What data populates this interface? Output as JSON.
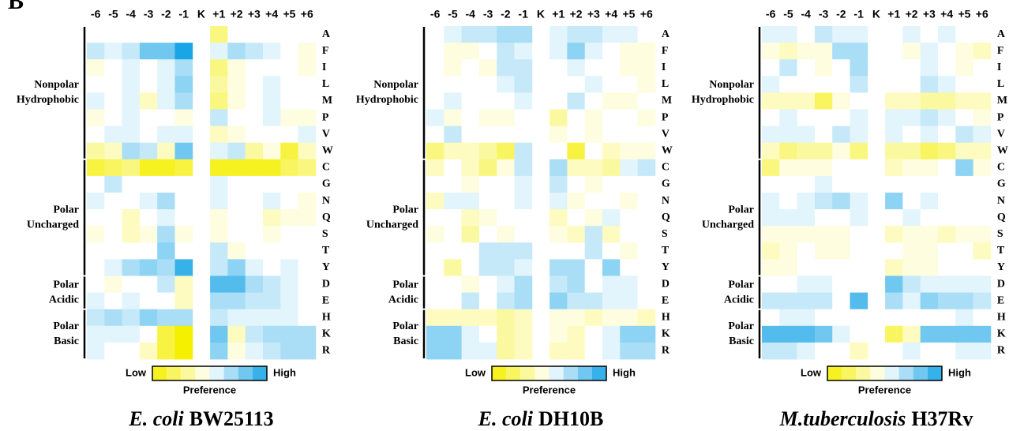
{
  "panel_label": "B",
  "chart_data": [
    {
      "type": "heatmap",
      "species": "E. coli",
      "title": "BW25113",
      "x": [
        "-6",
        "-5",
        "-4",
        "-3",
        "-2",
        "-1",
        "K",
        "+1",
        "+2",
        "+3",
        "+4",
        "+5",
        "+6"
      ],
      "y": [
        "A",
        "F",
        "I",
        "L",
        "M",
        "P",
        "V",
        "W",
        "C",
        "G",
        "N",
        "Q",
        "S",
        "T",
        "Y",
        "D",
        "E",
        "H",
        "K",
        "R"
      ],
      "groups": [
        {
          "label": [
            "Nonpolar",
            "Hydrophobic"
          ],
          "span": 8
        },
        {
          "label": [
            "Polar",
            "Uncharged"
          ],
          "span": 7
        },
        {
          "label": [
            "Polar",
            "Acidic"
          ],
          "span": 2
        },
        {
          "label": [
            "Polar",
            "Basic"
          ],
          "span": 3
        }
      ],
      "zlim": [
        -0.8,
        0.8
      ],
      "low_color": "#f5ef00",
      "high_color": "#1aa6e6",
      "colorbar": {
        "low": "Low",
        "high": "High",
        "label": "Preference"
      },
      "values": [
        [
          0,
          0,
          0,
          0,
          0,
          0,
          null,
          -0.4,
          0,
          0,
          0,
          0,
          0
        ],
        [
          0.2,
          0.1,
          0.2,
          0.5,
          0.5,
          0.8,
          null,
          0.1,
          0.3,
          0.2,
          0.1,
          0,
          -0.1
        ],
        [
          -0.1,
          0,
          0.1,
          0,
          0.1,
          0.3,
          null,
          -0.4,
          -0.1,
          0,
          0,
          0,
          -0.1
        ],
        [
          0,
          0,
          0.1,
          0,
          0.1,
          0.4,
          null,
          -0.3,
          -0.1,
          0,
          0.1,
          0,
          0
        ],
        [
          0.1,
          0,
          0.1,
          -0.2,
          0.1,
          0.3,
          null,
          -0.4,
          -0.1,
          0,
          0.1,
          0,
          0
        ],
        [
          -0.1,
          0,
          0.1,
          0,
          0,
          -0.1,
          null,
          0.2,
          0,
          0,
          0.1,
          -0.1,
          -0.1
        ],
        [
          0,
          0.1,
          0.1,
          0,
          0.1,
          0.1,
          null,
          -0.2,
          -0.1,
          0,
          0,
          0,
          0.1
        ],
        [
          -0.3,
          -0.2,
          0.3,
          0.2,
          -0.2,
          0.5,
          null,
          0.1,
          0.2,
          -0.3,
          -0.1,
          -0.6,
          -0.2
        ],
        [
          -0.6,
          -0.5,
          -0.4,
          -0.7,
          -0.7,
          -0.6,
          null,
          -0.7,
          -0.7,
          -0.7,
          -0.7,
          -0.5,
          -0.4
        ],
        [
          0,
          0.2,
          0,
          0,
          0,
          0,
          null,
          0.1,
          0,
          0,
          0,
          0,
          0
        ],
        [
          0.1,
          0,
          0,
          0.1,
          0.3,
          0,
          null,
          0.1,
          0,
          0,
          0.1,
          0,
          -0.1
        ],
        [
          0,
          0,
          -0.2,
          0,
          0.1,
          0,
          null,
          -0.1,
          0,
          0,
          -0.2,
          -0.1,
          -0.1
        ],
        [
          -0.1,
          0,
          -0.2,
          -0.1,
          0.3,
          -0.1,
          null,
          -0.1,
          0,
          0,
          -0.1,
          0,
          0
        ],
        [
          0,
          0,
          0,
          0,
          0.4,
          0,
          null,
          0.2,
          -0.1,
          0,
          0,
          0,
          0
        ],
        [
          0,
          0.1,
          0.3,
          0.4,
          0.3,
          0.7,
          null,
          0.2,
          0.4,
          0.1,
          0,
          0.1,
          0
        ],
        [
          0,
          -0.1,
          0,
          0,
          0.2,
          -0.2,
          null,
          0.6,
          0.6,
          0.3,
          0.2,
          0.1,
          0
        ],
        [
          0.1,
          0,
          0.1,
          0,
          0,
          -0.2,
          null,
          0.3,
          0.3,
          0.2,
          0.2,
          0.1,
          0
        ],
        [
          0.2,
          0.3,
          0.2,
          0.4,
          0.3,
          0.3,
          null,
          0.2,
          0.1,
          0.1,
          0.1,
          0.1,
          0
        ],
        [
          0.1,
          0.1,
          0.1,
          0,
          -0.6,
          -0.8,
          null,
          0.5,
          -0.2,
          0.2,
          0.3,
          0.3,
          0.3
        ],
        [
          0.1,
          0,
          0,
          -0.2,
          -0.6,
          -0.8,
          null,
          0.4,
          -0.1,
          0.1,
          0.2,
          0.3,
          0.3
        ]
      ]
    },
    {
      "type": "heatmap",
      "species": "E. coli",
      "title": "DH10B",
      "x": [
        "-6",
        "-5",
        "-4",
        "-3",
        "-2",
        "-1",
        "K",
        "+1",
        "+2",
        "+3",
        "+4",
        "+5",
        "+6"
      ],
      "y": [
        "A",
        "F",
        "I",
        "L",
        "M",
        "P",
        "V",
        "W",
        "C",
        "G",
        "N",
        "Q",
        "S",
        "T",
        "Y",
        "D",
        "E",
        "H",
        "K",
        "R"
      ],
      "groups": [
        {
          "label": [
            "Nonpolar",
            "Hydrophobic"
          ],
          "span": 8
        },
        {
          "label": [
            "Polar",
            "Uncharged"
          ],
          "span": 7
        },
        {
          "label": [
            "Polar",
            "Acidic"
          ],
          "span": 2
        },
        {
          "label": [
            "Polar",
            "Basic"
          ],
          "span": 3
        }
      ],
      "zlim": [
        -0.8,
        0.8
      ],
      "low_color": "#f5ef00",
      "high_color": "#1aa6e6",
      "colorbar": {
        "low": "Low",
        "high": "High",
        "label": "Preference"
      },
      "values": [
        [
          0,
          0.1,
          0.2,
          0.2,
          0.3,
          0.3,
          null,
          0.1,
          0.2,
          0.2,
          0.1,
          0.1,
          0
        ],
        [
          0,
          -0.1,
          -0.1,
          0,
          0.2,
          0.1,
          null,
          0.1,
          0.4,
          0.1,
          0,
          -0.1,
          -0.1
        ],
        [
          0,
          -0.1,
          0,
          -0.1,
          0.2,
          0.2,
          null,
          0,
          0.1,
          0,
          0,
          -0.1,
          -0.1
        ],
        [
          0,
          0,
          0,
          0,
          0.1,
          0.2,
          null,
          0,
          0,
          0.1,
          0,
          0,
          -0.1
        ],
        [
          0,
          0.1,
          0,
          0,
          0,
          0.1,
          null,
          0,
          0.2,
          0,
          -0.1,
          -0.1,
          0
        ],
        [
          0.1,
          -0.1,
          0,
          -0.1,
          -0.1,
          0,
          null,
          -0.3,
          0,
          -0.1,
          0,
          0,
          -0.1
        ],
        [
          0,
          0.2,
          0,
          0,
          0,
          0,
          null,
          -0.1,
          0,
          -0.1,
          0,
          0,
          0
        ],
        [
          -0.4,
          -0.2,
          -0.2,
          -0.3,
          -0.5,
          0.2,
          null,
          0,
          -0.6,
          0,
          -0.2,
          -0.1,
          -0.1
        ],
        [
          -0.2,
          0,
          -0.2,
          -0.4,
          -0.1,
          0.2,
          null,
          0.3,
          -0.2,
          -0.2,
          -0.3,
          0.1,
          0.2
        ],
        [
          0,
          0,
          -0.1,
          0,
          0,
          0.1,
          null,
          0.2,
          0,
          -0.1,
          0,
          0,
          0
        ],
        [
          -0.2,
          0.1,
          0.1,
          0,
          0,
          0.1,
          null,
          0.1,
          -0.1,
          0,
          0,
          -0.1,
          0
        ],
        [
          0,
          0,
          -0.2,
          -0.1,
          0,
          0,
          null,
          -0.2,
          0,
          -0.1,
          0.1,
          0,
          0
        ],
        [
          -0.1,
          0,
          -0.3,
          0,
          -0.1,
          0,
          null,
          -0.1,
          -0.2,
          0.2,
          -0.2,
          0,
          0
        ],
        [
          0,
          0,
          0,
          0.2,
          0.2,
          0.2,
          null,
          0,
          0,
          0.2,
          0,
          -0.1,
          0
        ],
        [
          0,
          -0.3,
          0,
          0.2,
          0.2,
          0.1,
          null,
          0.3,
          0.3,
          0,
          0.4,
          0,
          0
        ],
        [
          0,
          0,
          -0.1,
          0,
          0.1,
          0.3,
          null,
          0.2,
          0.3,
          0,
          0.1,
          0.1,
          0
        ],
        [
          0,
          0,
          0.2,
          0,
          0.2,
          0.3,
          null,
          0.4,
          0.2,
          0.2,
          0.1,
          0.1,
          0
        ],
        [
          -0.2,
          -0.2,
          -0.2,
          -0.2,
          -0.3,
          -0.2,
          null,
          -0.1,
          -0.1,
          -0.2,
          -0.1,
          -0.1,
          -0.2
        ],
        [
          0.4,
          0.4,
          0.1,
          0,
          -0.3,
          -0.2,
          null,
          -0.1,
          -0.2,
          0,
          0.1,
          0.4,
          0.4
        ],
        [
          0.4,
          0.4,
          0.1,
          0.1,
          -0.3,
          -0.2,
          null,
          -0.2,
          -0.2,
          0,
          0.1,
          0.3,
          0.3
        ]
      ]
    },
    {
      "type": "heatmap",
      "species": "M.tuberculosis",
      "title": "H37Rv",
      "x": [
        "-6",
        "-5",
        "-4",
        "-3",
        "-2",
        "-1",
        "K",
        "+1",
        "+2",
        "+3",
        "+4",
        "+5",
        "+6"
      ],
      "y": [
        "A",
        "F",
        "I",
        "L",
        "M",
        "P",
        "V",
        "W",
        "C",
        "G",
        "N",
        "Q",
        "S",
        "T",
        "Y",
        "D",
        "E",
        "H",
        "K",
        "R"
      ],
      "groups": [
        {
          "label": [
            "Nonpolar",
            "Hydrophobic"
          ],
          "span": 8
        },
        {
          "label": [
            "Polar",
            "Uncharged"
          ],
          "span": 7
        },
        {
          "label": [
            "Polar",
            "Acidic"
          ],
          "span": 2
        },
        {
          "label": [
            "Polar",
            "Basic"
          ],
          "span": 3
        }
      ],
      "zlim": [
        -0.8,
        0.8
      ],
      "low_color": "#f5ef00",
      "high_color": "#1aa6e6",
      "colorbar": {
        "low": "Low",
        "high": "High",
        "label": "Preference"
      },
      "values": [
        [
          0.1,
          0.1,
          0,
          0.2,
          0.1,
          0.1,
          null,
          0,
          0.1,
          0,
          0.1,
          0,
          0
        ],
        [
          -0.1,
          -0.2,
          -0.1,
          -0.1,
          0.3,
          0.3,
          null,
          0,
          -0.1,
          0.1,
          0,
          -0.1,
          -0.2
        ],
        [
          0,
          0.2,
          0,
          -0.1,
          0,
          0.3,
          null,
          0,
          0,
          0.1,
          0,
          -0.1,
          0
        ],
        [
          0.1,
          0,
          0,
          0,
          0,
          0.2,
          null,
          0,
          0,
          0.2,
          0.1,
          0,
          0
        ],
        [
          -0.2,
          -0.2,
          -0.2,
          -0.5,
          -0.1,
          0,
          null,
          -0.2,
          -0.2,
          -0.3,
          -0.3,
          -0.2,
          -0.2
        ],
        [
          0,
          0.1,
          0,
          0,
          0,
          0.1,
          null,
          0.1,
          0.1,
          0.2,
          0.1,
          0,
          -0.1
        ],
        [
          0.1,
          0.1,
          0.1,
          0,
          0.2,
          0.1,
          null,
          0.1,
          0,
          0.1,
          0,
          0.2,
          0.1
        ],
        [
          -0.2,
          -0.4,
          -0.3,
          -0.3,
          -0.1,
          -0.4,
          null,
          -0.3,
          -0.3,
          -0.5,
          -0.4,
          -0.2,
          -0.2
        ],
        [
          -0.4,
          -0.1,
          -0.1,
          -0.1,
          0,
          0,
          null,
          -0.2,
          -0.1,
          -0.1,
          0,
          0.4,
          -0.1
        ],
        [
          0,
          0,
          0,
          0.1,
          0,
          0,
          null,
          0,
          0,
          0,
          0,
          0,
          0
        ],
        [
          0.1,
          0,
          0.1,
          0.2,
          0.3,
          0.1,
          null,
          0.4,
          0,
          0.1,
          0,
          0,
          0
        ],
        [
          0.1,
          0.1,
          0.1,
          0,
          0,
          0.1,
          null,
          0,
          0.1,
          0,
          0,
          0,
          0
        ],
        [
          -0.1,
          -0.1,
          -0.1,
          -0.1,
          -0.1,
          0,
          null,
          -0.2,
          -0.1,
          -0.1,
          -0.2,
          -0.1,
          -0.1
        ],
        [
          -0.2,
          -0.1,
          0,
          -0.1,
          -0.1,
          0,
          null,
          0,
          -0.1,
          -0.1,
          0,
          0,
          -0.2
        ],
        [
          -0.1,
          -0.1,
          0,
          0,
          0,
          0,
          null,
          -0.2,
          -0.1,
          -0.1,
          0,
          0,
          0
        ],
        [
          0,
          0,
          0.1,
          0.1,
          0,
          0,
          null,
          0.5,
          0.2,
          0.1,
          0.1,
          0.1,
          0.1
        ],
        [
          0.2,
          0.2,
          0.2,
          0.2,
          0,
          0.6,
          null,
          0.3,
          0.1,
          0.4,
          0.3,
          0.3,
          0.2
        ],
        [
          0,
          0.1,
          0.1,
          0,
          0,
          0,
          null,
          0,
          0,
          0,
          0,
          0.1,
          0
        ],
        [
          0.6,
          0.6,
          0.6,
          0.5,
          0.1,
          0,
          null,
          -0.5,
          -0.2,
          0.5,
          0.5,
          0.5,
          0.5
        ],
        [
          0.2,
          0.2,
          0.1,
          0,
          0,
          -0.2,
          null,
          0,
          0.1,
          0,
          0,
          0.1,
          0.1
        ]
      ]
    }
  ]
}
